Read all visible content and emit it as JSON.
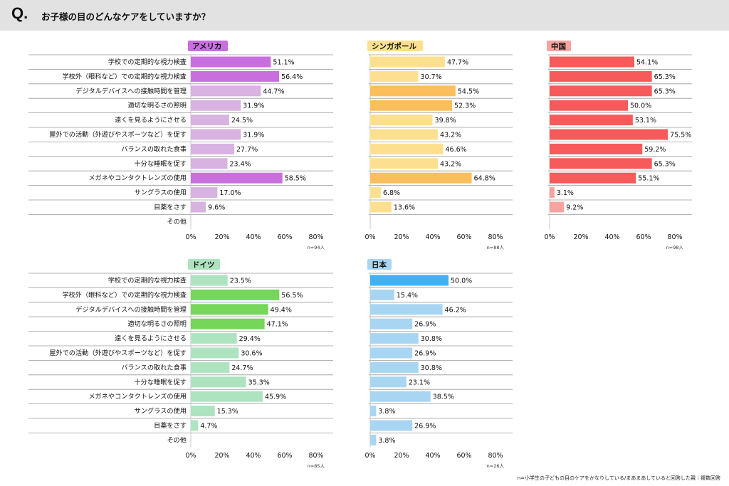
{
  "header": {
    "q_mark": "Q.",
    "question": "お子様の目のどんなケアをしていますか？"
  },
  "footnote": "n=小学生の子どもの目のケアをかなりしている/まあまあしていると回答した親｜複数回答",
  "chart_data": {
    "type": "bar",
    "orientation": "horizontal",
    "categories": [
      "学校での定期的な視力検査",
      "学校外（眼科など）での定期的な視力検査",
      "デジタルデバイスへの接触時間を管理",
      "適切な明るさの照明",
      "遠くを見るようにさせる",
      "屋外での活動（外遊びやスポーツなど）を促す",
      "バランスの取れた食事",
      "十分な睡眠を促す",
      "メガネやコンタクトレンズの使用",
      "サングラスの使用",
      "目薬をさす",
      "その他"
    ],
    "xlim": [
      0,
      80
    ],
    "ticks": [
      "0%",
      "20%",
      "40%",
      "60%",
      "80%"
    ],
    "grid": false,
    "panels": [
      {
        "name": "アメリカ",
        "n_label": "n=94人",
        "label_color": "#c86fdd",
        "values": [
          51.1,
          56.4,
          44.7,
          31.9,
          24.5,
          31.9,
          27.7,
          23.4,
          58.5,
          17.0,
          9.6,
          null
        ],
        "value_labels": [
          "51.1%",
          "56.4%",
          "44.7%",
          "31.9%",
          "24.5%",
          "31.9%",
          "27.7%",
          "23.4%",
          "58.5%",
          "17.0%",
          "9.6%",
          ""
        ],
        "highlight": [
          true,
          true,
          false,
          false,
          false,
          false,
          false,
          false,
          true,
          false,
          false,
          false
        ],
        "color_highlight": "#c86fdd",
        "color_base": "#d8b2e0"
      },
      {
        "name": "シンガポール",
        "n_label": "n=88人",
        "label_color": "#fde08f",
        "values": [
          47.7,
          30.7,
          54.5,
          52.3,
          39.8,
          43.2,
          46.6,
          43.2,
          64.8,
          6.8,
          13.6,
          null
        ],
        "value_labels": [
          "47.7%",
          "30.7%",
          "54.5%",
          "52.3%",
          "39.8%",
          "43.2%",
          "46.6%",
          "43.2%",
          "64.8%",
          "6.8%",
          "13.6%",
          ""
        ],
        "highlight": [
          false,
          false,
          true,
          true,
          false,
          false,
          false,
          false,
          true,
          false,
          false,
          false
        ],
        "color_highlight": "#fbbe5d",
        "color_base": "#fde08f"
      },
      {
        "name": "中国",
        "n_label": "n=98人",
        "label_color": "#f8a39f",
        "values": [
          54.1,
          65.3,
          65.3,
          50.0,
          53.1,
          75.5,
          59.2,
          65.3,
          55.1,
          3.1,
          9.2,
          null
        ],
        "value_labels": [
          "54.1%",
          "65.3%",
          "65.3%",
          "50.0%",
          "53.1%",
          "75.5%",
          "59.2%",
          "65.3%",
          "55.1%",
          "3.1%",
          "9.2%",
          ""
        ],
        "highlight": [
          true,
          true,
          true,
          true,
          true,
          true,
          true,
          true,
          true,
          false,
          false,
          false
        ],
        "color_highlight": "#f65a5a",
        "color_base": "#f8a39f"
      },
      {
        "name": "ドイツ",
        "n_label": "n=85人",
        "label_color": "#aee3c0",
        "values": [
          23.5,
          56.5,
          49.4,
          47.1,
          29.4,
          30.6,
          24.7,
          35.3,
          45.9,
          15.3,
          4.7,
          null
        ],
        "value_labels": [
          "23.5%",
          "56.5%",
          "49.4%",
          "47.1%",
          "29.4%",
          "30.6%",
          "24.7%",
          "35.3%",
          "45.9%",
          "15.3%",
          "4.7%",
          ""
        ],
        "highlight": [
          false,
          true,
          true,
          true,
          false,
          false,
          false,
          false,
          false,
          false,
          false,
          false
        ],
        "color_highlight": "#76d65a",
        "color_base": "#aee3c0"
      },
      {
        "name": "日本",
        "n_label": "n=26人",
        "label_color": "#a8d5f2",
        "values": [
          50.0,
          15.4,
          46.2,
          26.9,
          30.8,
          26.9,
          30.8,
          23.1,
          38.5,
          3.8,
          26.9,
          3.8
        ],
        "value_labels": [
          "50.0%",
          "15.4%",
          "46.2%",
          "26.9%",
          "30.8%",
          "26.9%",
          "30.8%",
          "23.1%",
          "38.5%",
          "3.8%",
          "26.9%",
          "3.8%"
        ],
        "highlight": [
          true,
          false,
          false,
          false,
          false,
          false,
          false,
          false,
          false,
          false,
          false,
          false
        ],
        "color_highlight": "#3fb1f6",
        "color_base": "#a8d5f2"
      }
    ]
  }
}
